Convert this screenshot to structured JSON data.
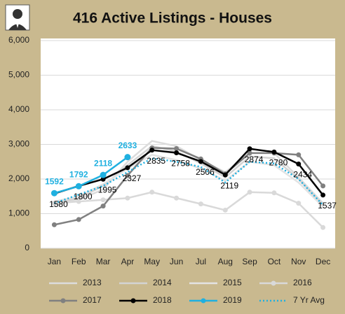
{
  "chart_data": {
    "type": "line",
    "title": "416 Active Listings - Houses",
    "categories": [
      "Jan",
      "Feb",
      "Mar",
      "Apr",
      "May",
      "Jun",
      "Jul",
      "Aug",
      "Sep",
      "Oct",
      "Nov",
      "Dec"
    ],
    "ylim": [
      0,
      6000
    ],
    "yticks": [
      {
        "value": 0,
        "label": "0"
      },
      {
        "value": 1000,
        "label": "1,000"
      },
      {
        "value": 2000,
        "label": "2,000"
      },
      {
        "value": 3000,
        "label": "3,000"
      },
      {
        "value": 4000,
        "label": "4,000"
      },
      {
        "value": 5000,
        "label": "5,000"
      },
      {
        "value": 6000,
        "label": "6,000"
      }
    ],
    "grid": true,
    "series": [
      {
        "name": "2013",
        "color": "#dcdcdc",
        "values": [
          1250,
          1400,
          1700,
          2500,
          3100,
          2950,
          2550,
          2200,
          2750,
          2750,
          2050,
          1300
        ]
      },
      {
        "name": "2014",
        "color": "#d3d3d3",
        "values": [
          1300,
          1450,
          1800,
          2400,
          2950,
          2800,
          2450,
          2050,
          2650,
          2600,
          2000,
          1250
        ]
      },
      {
        "name": "2015",
        "color": "#e3e3e3",
        "values": [
          1350,
          1500,
          1850,
          2300,
          2700,
          2550,
          2300,
          1950,
          2500,
          2400,
          1900,
          1200
        ]
      },
      {
        "name": "2016",
        "color": "#d9d9d9",
        "marker": true,
        "values": [
          1300,
          1350,
          1400,
          1450,
          1620,
          1450,
          1280,
          1100,
          1620,
          1600,
          1300,
          600
        ]
      },
      {
        "name": "2017",
        "color": "#808080",
        "marker": true,
        "values": [
          680,
          830,
          1220,
          2100,
          2900,
          2880,
          2580,
          2150,
          2750,
          2750,
          2700,
          1800
        ]
      },
      {
        "name": "2018",
        "color": "#000000",
        "marker": true,
        "labels": true,
        "values": [
          1580,
          1800,
          1995,
          2327,
          2835,
          2758,
          2506,
          2119,
          2874,
          2780,
          2434,
          1537
        ]
      },
      {
        "name": "2019",
        "color": "#1fb0e0",
        "marker": true,
        "labels": true,
        "values": [
          1592,
          1792,
          2118,
          2633,
          null,
          null,
          null,
          null,
          null,
          null,
          null,
          null
        ]
      },
      {
        "name": "7 Yr Avg",
        "color": "#1fb0e0",
        "dash": true,
        "values": [
          1300,
          1550,
          1800,
          2200,
          2600,
          2500,
          2350,
          1900,
          2500,
          2450,
          2000,
          1250
        ]
      }
    ]
  }
}
